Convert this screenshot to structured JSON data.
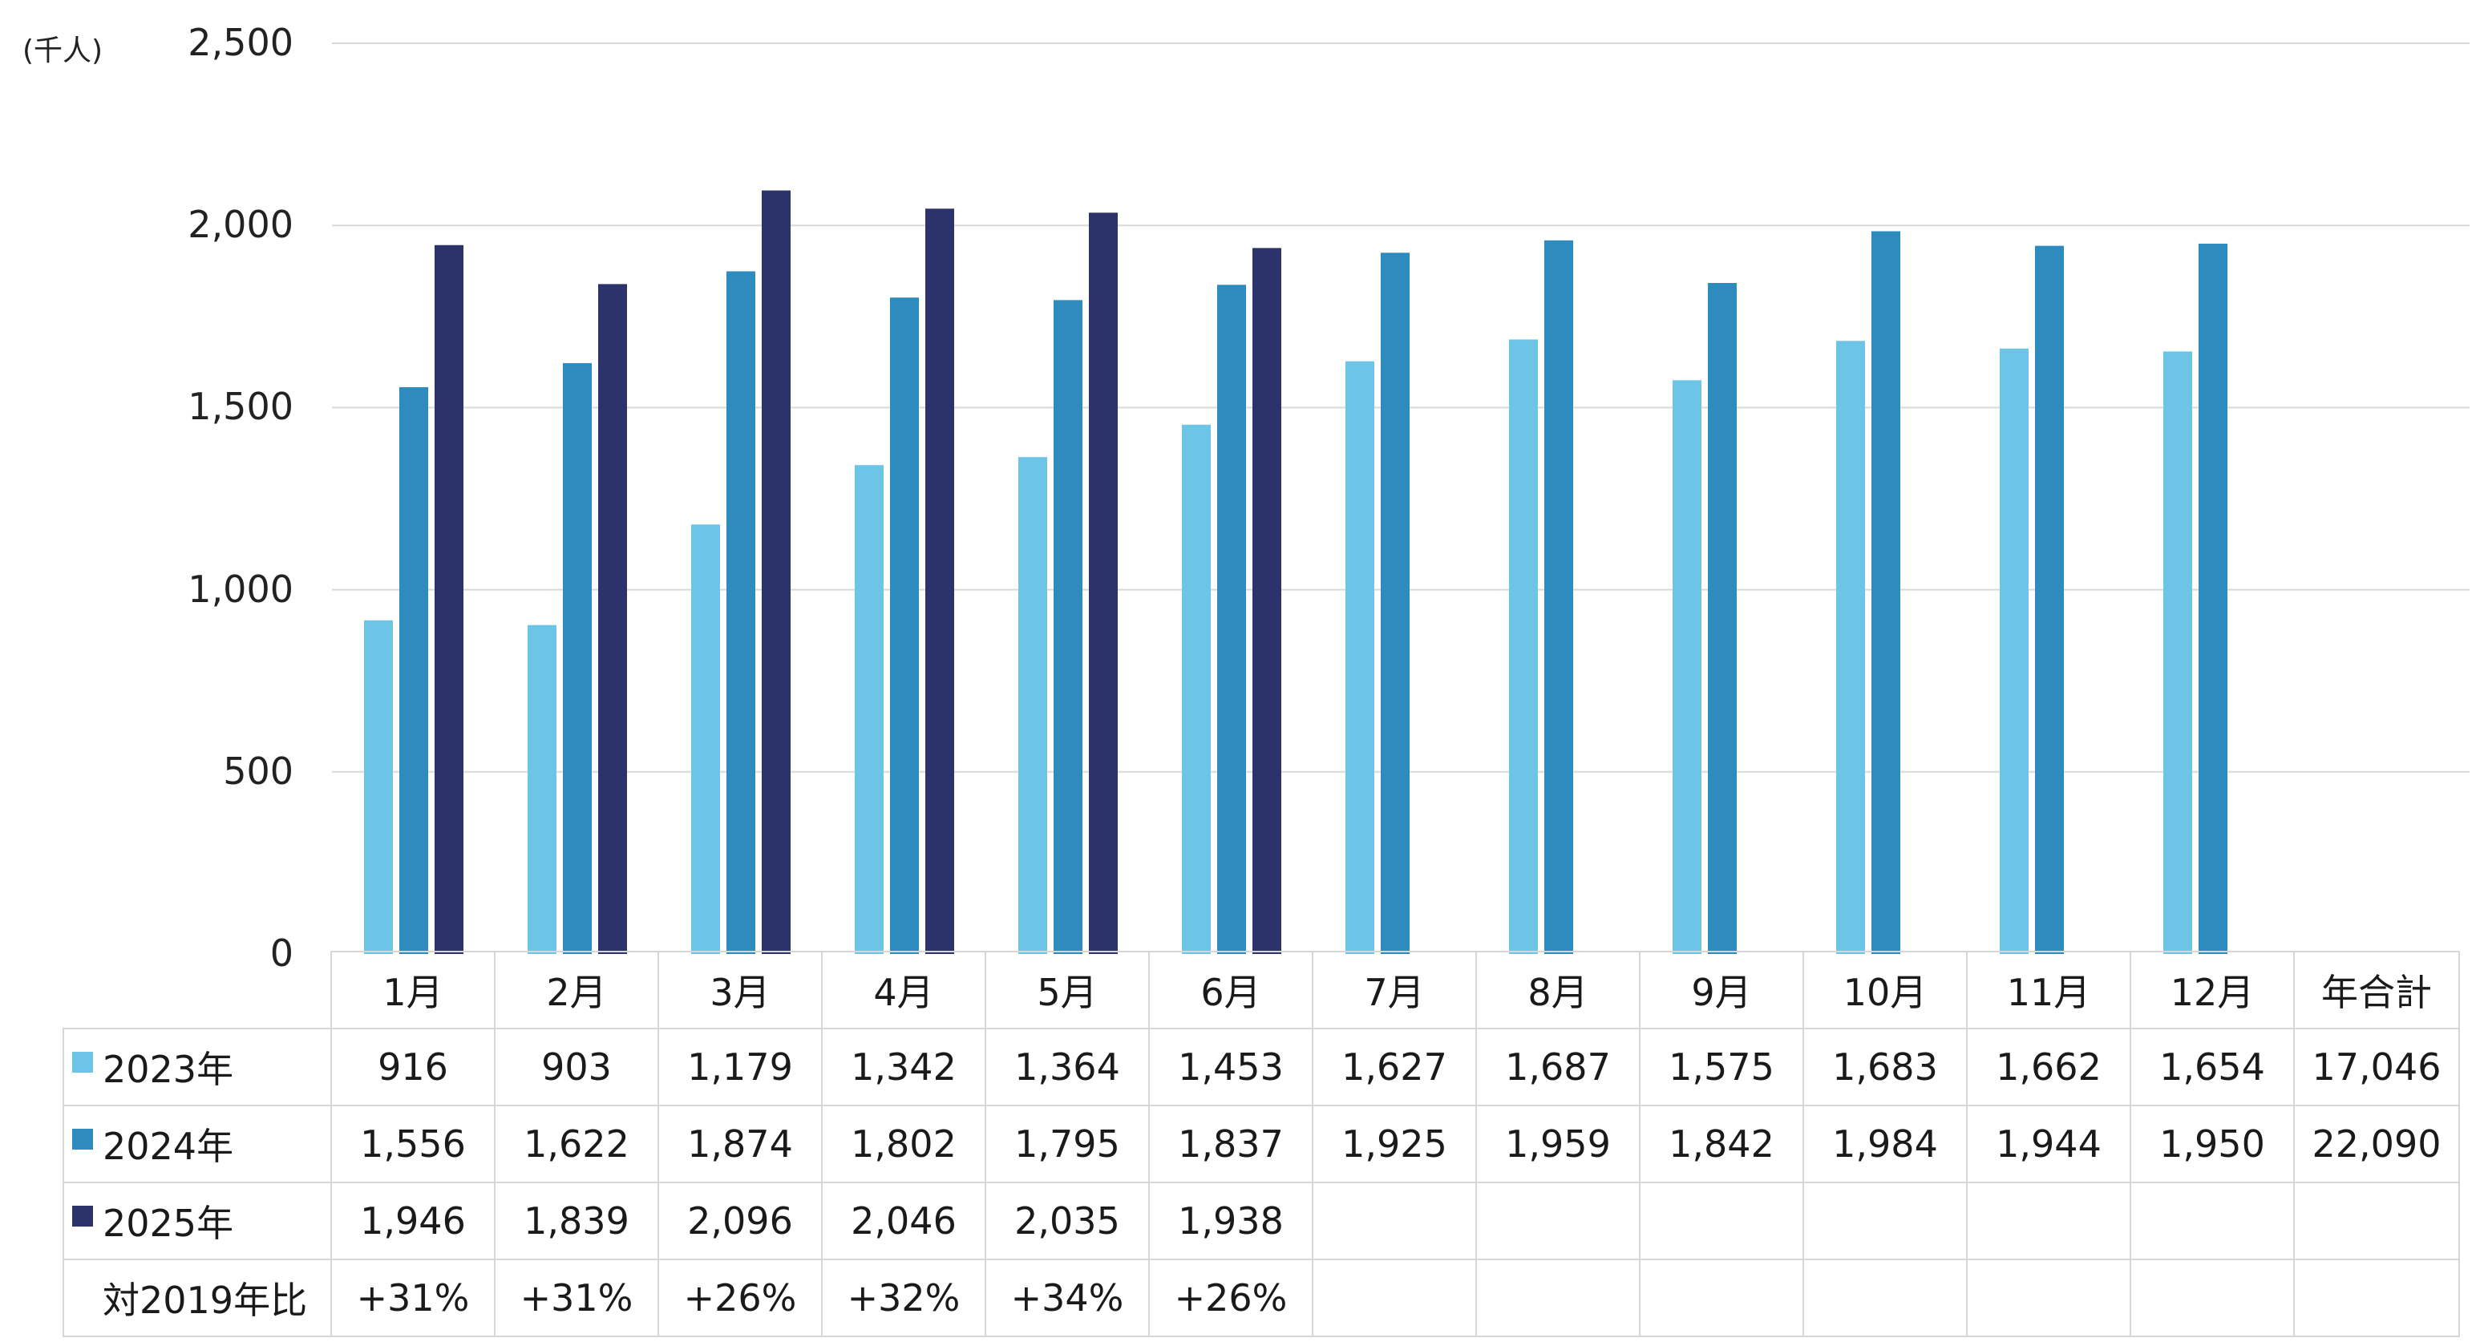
{
  "unit_label": "(千人)",
  "colors": {
    "2023年": "#6cc4e7",
    "2024年": "#2e8bbd",
    "2025年": "#2c336b",
    "grid": "#d9d9d9"
  },
  "chart_data": {
    "type": "bar",
    "categories": [
      "1月",
      "2月",
      "3月",
      "4月",
      "5月",
      "6月",
      "7月",
      "8月",
      "9月",
      "10月",
      "11月",
      "12月"
    ],
    "series": [
      {
        "name": "2023年",
        "values": [
          916,
          903,
          1179,
          1342,
          1364,
          1453,
          1627,
          1687,
          1575,
          1683,
          1662,
          1654
        ]
      },
      {
        "name": "2024年",
        "values": [
          1556,
          1622,
          1874,
          1802,
          1795,
          1837,
          1925,
          1959,
          1842,
          1984,
          1944,
          1950
        ]
      },
      {
        "name": "2025年",
        "values": [
          1946,
          1839,
          2096,
          2046,
          2035,
          1938,
          null,
          null,
          null,
          null,
          null,
          null
        ]
      }
    ],
    "ylim": [
      0,
      2500
    ],
    "yticks": [
      "0",
      "500",
      "1,000",
      "1,500",
      "2,000",
      "2,500"
    ],
    "grid": true
  },
  "table": {
    "header": [
      "1月",
      "2月",
      "3月",
      "4月",
      "5月",
      "6月",
      "7月",
      "8月",
      "9月",
      "10月",
      "11月",
      "12月",
      "年合計"
    ],
    "rows": [
      {
        "label": "2023年",
        "swatch": "#6cc4e7",
        "cells": [
          "916",
          "903",
          "1,179",
          "1,342",
          "1,364",
          "1,453",
          "1,627",
          "1,687",
          "1,575",
          "1,683",
          "1,662",
          "1,654",
          "17,046"
        ]
      },
      {
        "label": "2024年",
        "swatch": "#2e8bbd",
        "cells": [
          "1,556",
          "1,622",
          "1,874",
          "1,802",
          "1,795",
          "1,837",
          "1,925",
          "1,959",
          "1,842",
          "1,984",
          "1,944",
          "1,950",
          "22,090"
        ]
      },
      {
        "label": "2025年",
        "swatch": "#2c336b",
        "cells": [
          "1,946",
          "1,839",
          "2,096",
          "2,046",
          "2,035",
          "1,938",
          "",
          "",
          "",
          "",
          "",
          "",
          ""
        ]
      },
      {
        "label": "対2019年比",
        "swatch": "",
        "cells": [
          "+31%",
          "+31%",
          "+26%",
          "+32%",
          "+34%",
          "+26%",
          "",
          "",
          "",
          "",
          "",
          "",
          ""
        ]
      }
    ]
  }
}
